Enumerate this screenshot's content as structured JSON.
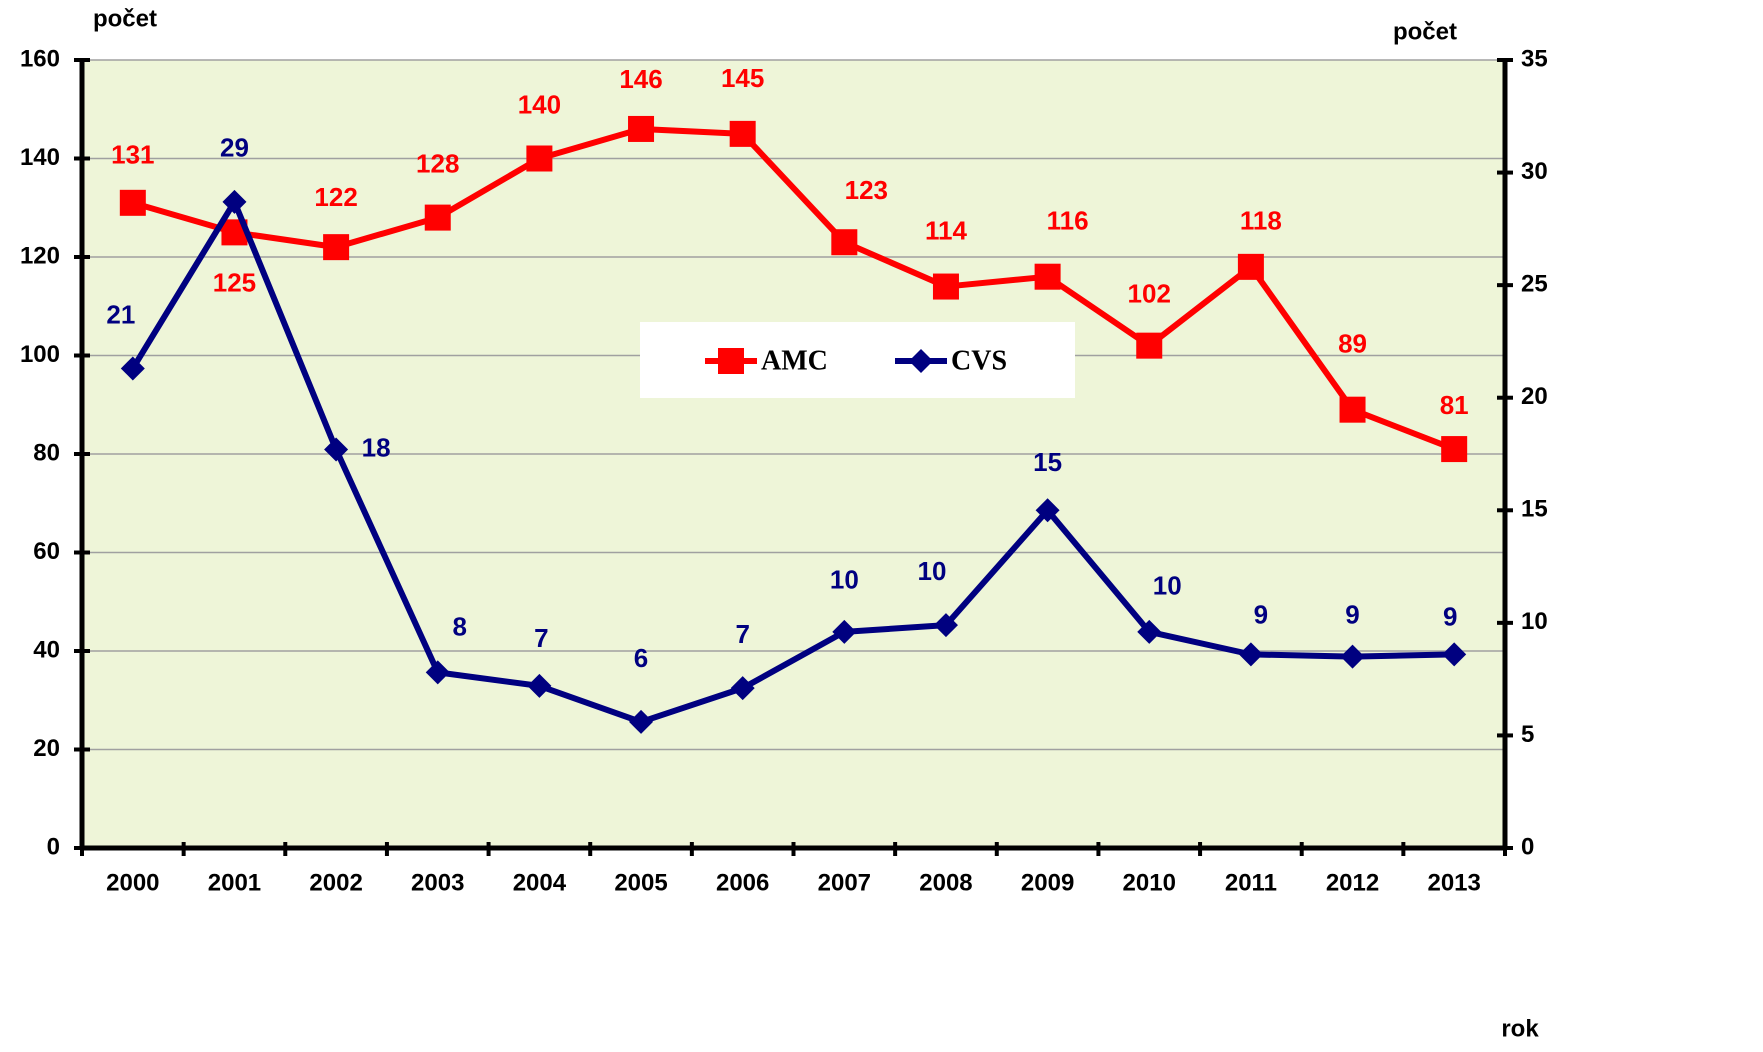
{
  "chart_data": {
    "type": "line",
    "ylabel": "počet",
    "y2label": "počet",
    "xlabel": "rok",
    "categories": [
      "2000",
      "2001",
      "2002",
      "2003",
      "2004",
      "2005",
      "2006",
      "2007",
      "2008",
      "2009",
      "2010",
      "2011",
      "2012",
      "2013"
    ],
    "series": [
      {
        "name": "AMC",
        "color": "#ff0000",
        "marker": "square",
        "values": [
          131,
          125,
          122,
          128,
          140,
          146,
          145,
          123,
          114,
          116,
          102,
          118,
          89,
          81
        ]
      },
      {
        "name": "CVS",
        "color": "#000080",
        "marker": "diamond",
        "axis": "y2",
        "values": [
          21.3,
          28.7,
          17.7,
          7.8,
          7.2,
          5.6,
          7.1,
          9.6,
          9.9,
          15,
          9.6,
          8.6,
          8.5,
          8.6
        ],
        "value_labels": [
          "21",
          "29",
          "18",
          "8",
          "7",
          "6",
          "7",
          "10",
          "10",
          "15",
          "10",
          "9",
          "9",
          "9"
        ]
      }
    ],
    "ylim": [
      0,
      160
    ],
    "yticks": [
      0,
      20,
      40,
      60,
      80,
      100,
      120,
      140,
      160
    ],
    "y2lim": [
      0,
      35
    ],
    "y2ticks": [
      0,
      5,
      10,
      15,
      20,
      25,
      30,
      35
    ],
    "grid": true
  }
}
